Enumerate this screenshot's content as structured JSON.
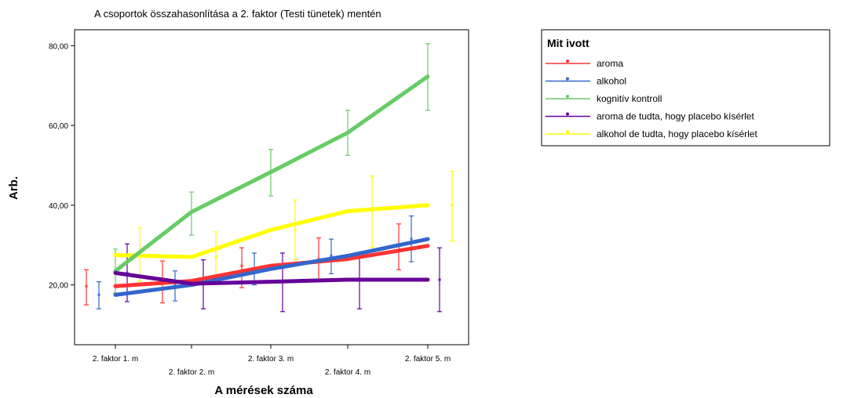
{
  "chart_data": {
    "type": "line",
    "title": "A csoportok összahasonlítása a 2. faktor (Testi tünetek) mentén",
    "xlabel": "A mérések száma",
    "ylabel": "Arb.",
    "categories": [
      "2. faktor 1. m",
      "2. faktor 2. m",
      "2. faktor 3. m",
      "2. faktor 4. m",
      "2. faktor 5. m"
    ],
    "y_ticks": [
      "20,00",
      "40,00",
      "60,00",
      "80,00"
    ],
    "ylim": [
      5,
      84
    ],
    "grid": false,
    "legend_title": "Mit ivott",
    "legend_position": "right",
    "series": [
      {
        "name": "aroma",
        "color": "#ff3333",
        "values": [
          19.7,
          21.0,
          24.8,
          26.5,
          29.8
        ],
        "ci_low": [
          15.0,
          15.5,
          19.3,
          21.0,
          23.8
        ],
        "ci_high": [
          23.8,
          26.0,
          29.3,
          31.8,
          35.3
        ]
      },
      {
        "name": "alkohol",
        "color": "#3366cc",
        "values": [
          17.5,
          20.0,
          24.0,
          27.3,
          31.5
        ],
        "ci_low": [
          14.0,
          16.0,
          20.0,
          22.8,
          25.8
        ],
        "ci_high": [
          20.8,
          23.5,
          28.0,
          31.5,
          37.3
        ]
      },
      {
        "name": "kognitív kontroll",
        "color": "#66cc66",
        "values": [
          23.5,
          38.3,
          48.3,
          58.2,
          72.3
        ],
        "ci_low": [
          18.0,
          32.5,
          42.3,
          52.5,
          63.8
        ],
        "ci_high": [
          29.0,
          43.3,
          54.0,
          63.8,
          80.5
        ]
      },
      {
        "name": "aroma de tudta, hogy placebo kísérlet",
        "color": "#660099",
        "values": [
          23.0,
          20.3,
          20.8,
          21.3,
          21.3
        ],
        "ci_low": [
          15.8,
          14.0,
          13.3,
          14.0,
          13.3
        ],
        "ci_high": [
          30.3,
          26.3,
          28.0,
          28.0,
          29.3
        ]
      },
      {
        "name": "alkohol de tudta, hogy placebo kísérlet",
        "color": "#ffff00",
        "values": [
          27.5,
          27.0,
          33.8,
          38.5,
          40.0
        ],
        "ci_low": [
          21.0,
          20.5,
          26.3,
          29.5,
          31.0
        ],
        "ci_high": [
          34.3,
          33.3,
          41.3,
          47.3,
          48.5
        ]
      }
    ]
  }
}
